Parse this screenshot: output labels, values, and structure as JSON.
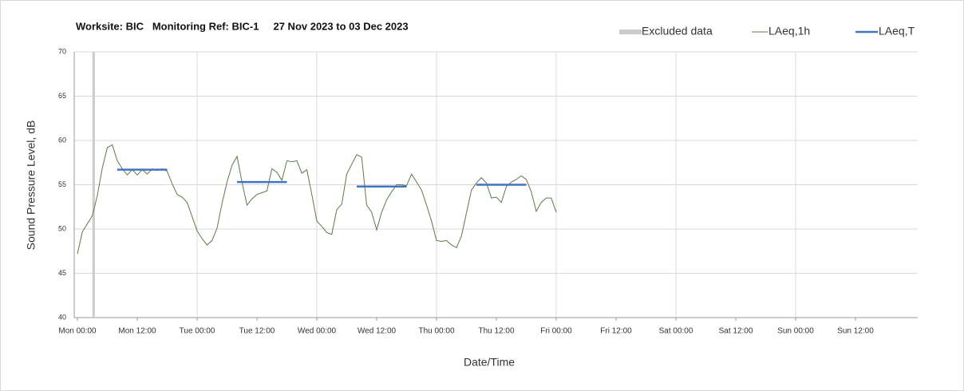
{
  "chart_data": {
    "type": "line",
    "title": "Worksite: BIC   Monitoring Ref: BIC-1     27 Nov 2023 to 03 Dec 2023",
    "xlabel": "Date/Time",
    "ylabel": "Sound Pressure Level, dB",
    "xlim": [
      0,
      168
    ],
    "xticks": [
      {
        "value": 0,
        "label": "Mon 00:00"
      },
      {
        "value": 12,
        "label": "Mon 12:00"
      },
      {
        "value": 24,
        "label": "Tue 00:00"
      },
      {
        "value": 36,
        "label": "Tue 12:00"
      },
      {
        "value": 48,
        "label": "Wed 00:00"
      },
      {
        "value": 60,
        "label": "Wed 12:00"
      },
      {
        "value": 72,
        "label": "Thu 00:00"
      },
      {
        "value": 84,
        "label": "Thu 12:00"
      },
      {
        "value": 96,
        "label": "Fri 00:00"
      },
      {
        "value": 108,
        "label": "Fri 12:00"
      },
      {
        "value": 120,
        "label": "Sat 00:00"
      },
      {
        "value": 132,
        "label": "Sat 12:00"
      },
      {
        "value": 144,
        "label": "Sun 00:00"
      },
      {
        "value": 156,
        "label": "Sun 12:00"
      }
    ],
    "ylim": [
      40,
      70
    ],
    "yticks": [
      40,
      45,
      50,
      55,
      60,
      65,
      70
    ],
    "grid": true,
    "legend": "top-right",
    "excluded": {
      "name": "Excluded data",
      "color": "#cccccc",
      "x_start": 3.0,
      "x_end": 3.5
    },
    "series": [
      {
        "name": "LAeq,1h",
        "color": "#5a7a4a",
        "x": [
          0,
          1,
          2,
          3,
          4,
          5,
          6,
          7,
          8,
          9,
          10,
          11,
          12,
          13,
          14,
          15,
          16,
          17,
          18,
          19,
          20,
          21,
          22,
          23,
          24,
          25,
          26,
          27,
          28,
          29,
          30,
          31,
          32,
          33,
          34,
          35,
          36,
          37,
          38,
          39,
          40,
          41,
          42,
          43,
          44,
          45,
          46,
          47,
          48,
          49,
          50,
          51,
          52,
          53,
          54,
          55,
          56,
          57,
          58,
          59,
          60,
          61,
          62,
          63,
          64,
          65,
          66,
          67,
          68,
          69,
          70,
          71,
          72,
          73,
          74,
          75,
          76,
          77,
          78,
          79,
          80,
          81,
          82,
          83,
          84,
          85,
          86,
          87,
          88,
          89,
          90,
          91,
          92,
          93,
          94,
          95,
          96
        ],
        "values": [
          47.2,
          49.7,
          50.6,
          51.5,
          53.8,
          56.9,
          59.2,
          59.5,
          57.7,
          56.8,
          56.1,
          56.7,
          56.1,
          56.7,
          56.2,
          56.8,
          56.6,
          56.8,
          56.5,
          55.1,
          53.9,
          53.6,
          53.0,
          51.4,
          49.8,
          48.9,
          48.2,
          48.7,
          50.1,
          52.9,
          55.3,
          57.2,
          58.2,
          55.3,
          52.7,
          53.4,
          53.9,
          54.1,
          54.3,
          56.8,
          56.4,
          55.5,
          57.7,
          57.6,
          57.7,
          56.3,
          56.7,
          53.9,
          50.9,
          50.3,
          49.6,
          49.4,
          52.2,
          52.8,
          56.2,
          57.3,
          58.4,
          58.1,
          52.7,
          51.9,
          49.9,
          51.9,
          53.3,
          54.2,
          55.0,
          55.0,
          54.9,
          56.2,
          55.3,
          54.4,
          52.7,
          50.9,
          48.7,
          48.6,
          48.7,
          48.2,
          47.9,
          49.2,
          51.8,
          54.4,
          55.2,
          55.8,
          55.2,
          53.5,
          53.6,
          53.0,
          54.8,
          55.3,
          55.6,
          56.0,
          55.6,
          54.2,
          52.0,
          53.0,
          53.5,
          53.5,
          51.9
        ]
      },
      {
        "name": "LAeq,T",
        "color": "#4472c4",
        "x_start": [
          8,
          32,
          56,
          80
        ],
        "x_end": [
          18,
          42,
          66,
          90
        ],
        "values": [
          56.7,
          55.3,
          54.8,
          55.0
        ]
      }
    ]
  }
}
